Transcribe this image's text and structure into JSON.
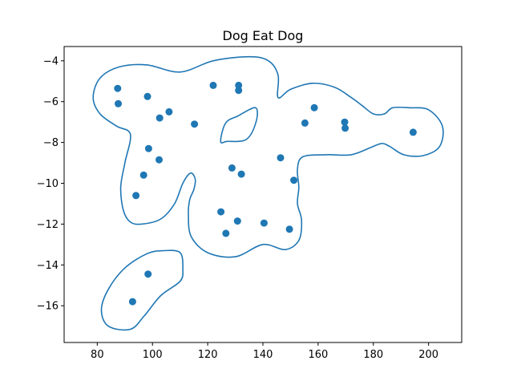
{
  "chart_data": {
    "type": "scatter",
    "title": "Dog Eat Dog",
    "xlabel": "",
    "ylabel": "",
    "xlim": [
      68,
      212
    ],
    "ylim": [
      -17.8,
      -3.3
    ],
    "xticks": [
      80,
      100,
      120,
      140,
      160,
      180,
      200
    ],
    "yticks": [
      -16,
      -14,
      -12,
      -10,
      -8,
      -6,
      -4
    ],
    "grid": false,
    "color": "#1f77b4",
    "points": [
      {
        "x": 87.4,
        "y": -5.35
      },
      {
        "x": 87.6,
        "y": -6.1
      },
      {
        "x": 98.2,
        "y": -5.75
      },
      {
        "x": 102.6,
        "y": -6.8
      },
      {
        "x": 106.0,
        "y": -6.5
      },
      {
        "x": 115.2,
        "y": -7.1
      },
      {
        "x": 122.0,
        "y": -5.2
      },
      {
        "x": 131.2,
        "y": -5.2
      },
      {
        "x": 131.2,
        "y": -5.45
      },
      {
        "x": 158.6,
        "y": -6.3
      },
      {
        "x": 155.2,
        "y": -7.05
      },
      {
        "x": 169.6,
        "y": -7.0
      },
      {
        "x": 169.8,
        "y": -7.3
      },
      {
        "x": 194.4,
        "y": -7.5
      },
      {
        "x": 98.6,
        "y": -8.3
      },
      {
        "x": 102.4,
        "y": -8.85
      },
      {
        "x": 96.8,
        "y": -9.6
      },
      {
        "x": 94.0,
        "y": -10.6
      },
      {
        "x": 128.8,
        "y": -9.25
      },
      {
        "x": 132.2,
        "y": -9.55
      },
      {
        "x": 146.4,
        "y": -8.75
      },
      {
        "x": 151.2,
        "y": -9.85
      },
      {
        "x": 124.8,
        "y": -11.4
      },
      {
        "x": 126.6,
        "y": -12.45
      },
      {
        "x": 130.8,
        "y": -11.85
      },
      {
        "x": 140.4,
        "y": -11.95
      },
      {
        "x": 149.6,
        "y": -12.25
      },
      {
        "x": 98.4,
        "y": -14.45
      },
      {
        "x": 92.8,
        "y": -15.8
      }
    ],
    "contours": [
      [
        [
          98,
          -4.2
        ],
        [
          110,
          -4.55
        ],
        [
          122,
          -4.0
        ],
        [
          135,
          -3.8
        ],
        [
          142,
          -4.0
        ],
        [
          145.5,
          -4.7
        ],
        [
          145.5,
          -5.8
        ],
        [
          150,
          -5.4
        ],
        [
          158,
          -5.1
        ],
        [
          166,
          -5.3
        ],
        [
          172,
          -5.8
        ],
        [
          176,
          -6.2
        ],
        [
          180,
          -6.6
        ],
        [
          184,
          -6.6
        ],
        [
          187,
          -6.3
        ],
        [
          193,
          -6.3
        ],
        [
          200,
          -6.4
        ],
        [
          205,
          -7.2
        ],
        [
          204,
          -8.2
        ],
        [
          198,
          -8.65
        ],
        [
          191,
          -8.6
        ],
        [
          186,
          -8.2
        ],
        [
          183,
          -8.05
        ],
        [
          179,
          -8.25
        ],
        [
          172,
          -8.6
        ],
        [
          163,
          -8.6
        ],
        [
          154.5,
          -8.7
        ],
        [
          152.5,
          -9.3
        ],
        [
          153,
          -10.2
        ],
        [
          152.5,
          -11.0
        ],
        [
          154,
          -11.8
        ],
        [
          153,
          -12.8
        ],
        [
          148,
          -13.25
        ],
        [
          140,
          -13.0
        ],
        [
          130,
          -13.6
        ],
        [
          120,
          -13.4
        ],
        [
          114,
          -12.6
        ],
        [
          113,
          -11.5
        ],
        [
          113.5,
          -10.8
        ],
        [
          115,
          -10.3
        ],
        [
          115.5,
          -9.8
        ],
        [
          113.8,
          -9.5
        ],
        [
          111,
          -10.0
        ],
        [
          108,
          -11.0
        ],
        [
          103,
          -11.75
        ],
        [
          96,
          -12.0
        ],
        [
          92,
          -11.9
        ],
        [
          89.5,
          -11.35
        ],
        [
          88.5,
          -10.2
        ],
        [
          90,
          -9.0
        ],
        [
          92,
          -7.6
        ],
        [
          87,
          -7.2
        ],
        [
          81,
          -6.6
        ],
        [
          78.5,
          -5.8
        ],
        [
          81,
          -4.85
        ],
        [
          88,
          -4.3
        ],
        [
          98,
          -4.2
        ]
      ],
      [
        [
          137.3,
          -6.3
        ],
        [
          131,
          -6.7
        ],
        [
          126.5,
          -7.05
        ],
        [
          124.7,
          -7.95
        ],
        [
          127,
          -7.95
        ],
        [
          134,
          -7.85
        ],
        [
          137.5,
          -7.0
        ],
        [
          137.3,
          -6.3
        ]
      ],
      [
        [
          110,
          -13.4
        ],
        [
          104,
          -13.3
        ],
        [
          98,
          -13.45
        ],
        [
          90,
          -14.15
        ],
        [
          84,
          -15.2
        ],
        [
          81.5,
          -16.2
        ],
        [
          84,
          -17.0
        ],
        [
          92,
          -17.15
        ],
        [
          97,
          -16.5
        ],
        [
          103,
          -15.5
        ],
        [
          110,
          -14.8
        ],
        [
          111,
          -14.2
        ],
        [
          110,
          -13.4
        ]
      ]
    ]
  }
}
